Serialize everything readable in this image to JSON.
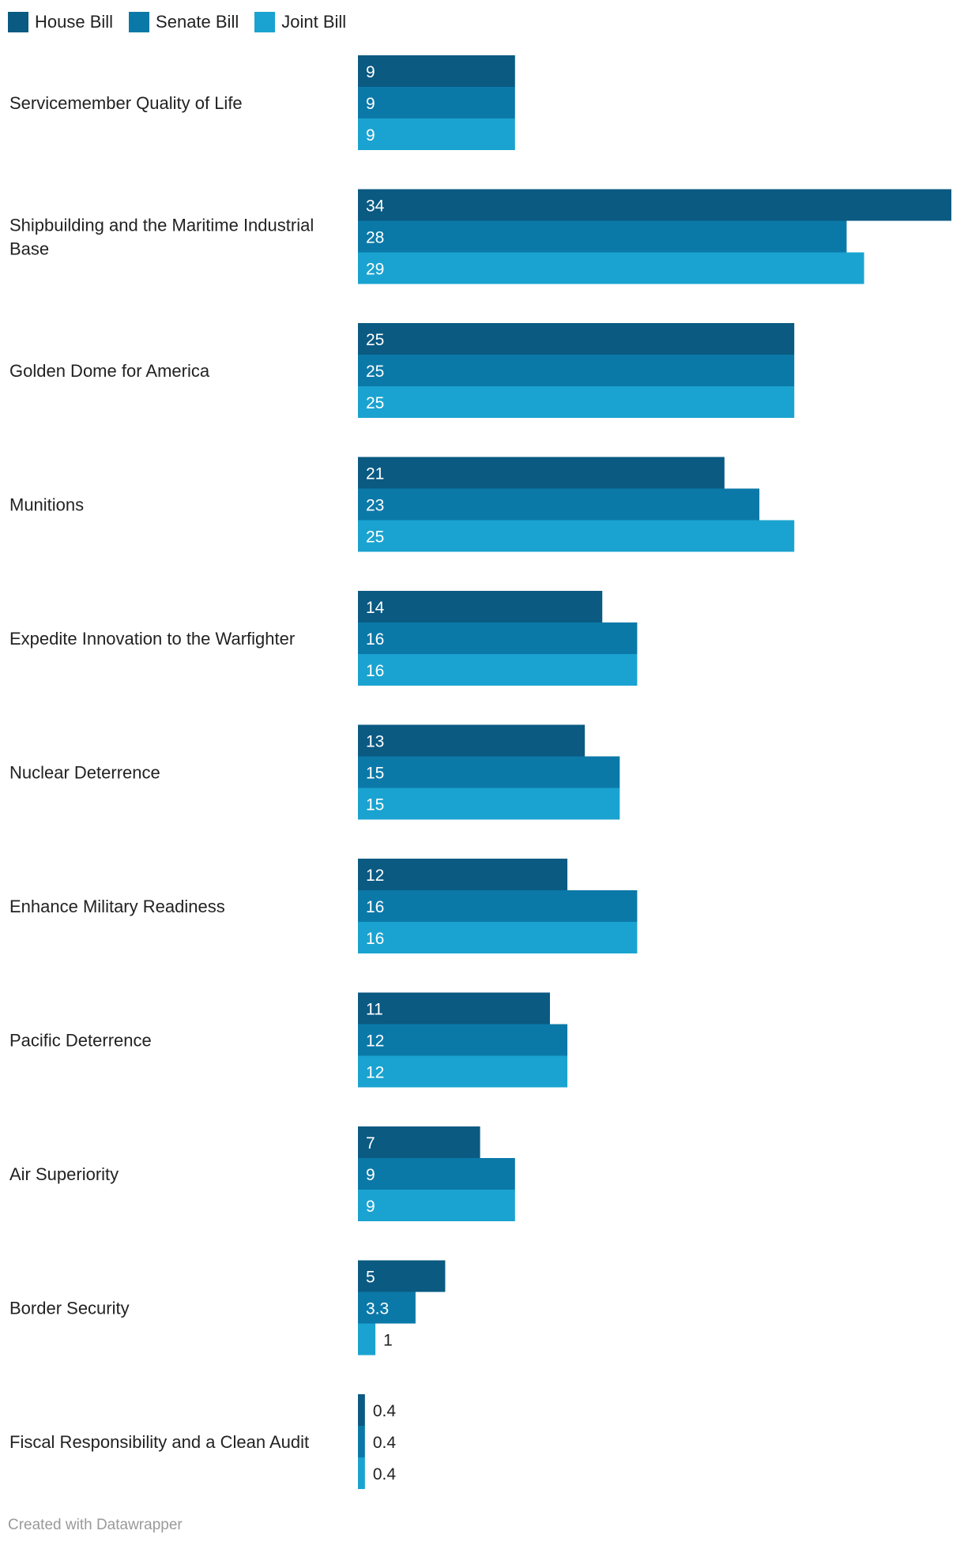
{
  "chart_data": {
    "type": "bar",
    "orientation": "horizontal",
    "legend": {
      "placement": "top-left",
      "items": [
        {
          "name": "House Bill",
          "color": "#0a5a82"
        },
        {
          "name": "Senate Bill",
          "color": "#0b79a8"
        },
        {
          "name": "Joint Bill",
          "color": "#1aa3d0"
        }
      ]
    },
    "categories": [
      "Servicemember Quality of Life",
      "Shipbuilding and the Maritime Industrial Base",
      "Golden Dome for America",
      "Munitions",
      "Expedite Innovation to the Warfighter",
      "Nuclear Deterrence",
      "Enhance Military Readiness",
      "Pacific Deterrence",
      "Air Superiority",
      "Border Security",
      "Fiscal Responsibility and a Clean Audit"
    ],
    "category_lines": [
      [
        "Servicemember Quality of Life"
      ],
      [
        "Shipbuilding and the Maritime Industrial",
        "Base"
      ],
      [
        "Golden Dome for America"
      ],
      [
        "Munitions"
      ],
      [
        "Expedite Innovation to the Warfighter"
      ],
      [
        "Nuclear Deterrence"
      ],
      [
        "Enhance Military Readiness"
      ],
      [
        "Pacific Deterrence"
      ],
      [
        "Air Superiority"
      ],
      [
        "Border Security"
      ],
      [
        "Fiscal Responsibility and a Clean Audit"
      ]
    ],
    "series": [
      {
        "name": "House Bill",
        "values": [
          9,
          34,
          25,
          21,
          14,
          13,
          12,
          11,
          7,
          5,
          0.4
        ],
        "labels": [
          "9",
          "34",
          "25",
          "21",
          "14",
          "13",
          "12",
          "11",
          "7",
          "5",
          "0.4"
        ]
      },
      {
        "name": "Senate Bill",
        "values": [
          9,
          28,
          25,
          23,
          16,
          15,
          16,
          12,
          9,
          3.3,
          0.4
        ],
        "labels": [
          "9",
          "28",
          "25",
          "23",
          "16",
          "15",
          "16",
          "12",
          "9",
          "3.3",
          "0.4"
        ]
      },
      {
        "name": "Joint Bill",
        "values": [
          9,
          29,
          25,
          25,
          16,
          15,
          16,
          12,
          9,
          1,
          0.4
        ],
        "labels": [
          "9",
          "29",
          "25",
          "25",
          "16",
          "15",
          "16",
          "12",
          "9",
          "1",
          "0.4"
        ]
      }
    ],
    "xlim": [
      0,
      34
    ],
    "title": "",
    "xlabel": "",
    "ylabel": "",
    "grid": false
  },
  "footer": {
    "credit": "Created with Datawrapper"
  }
}
